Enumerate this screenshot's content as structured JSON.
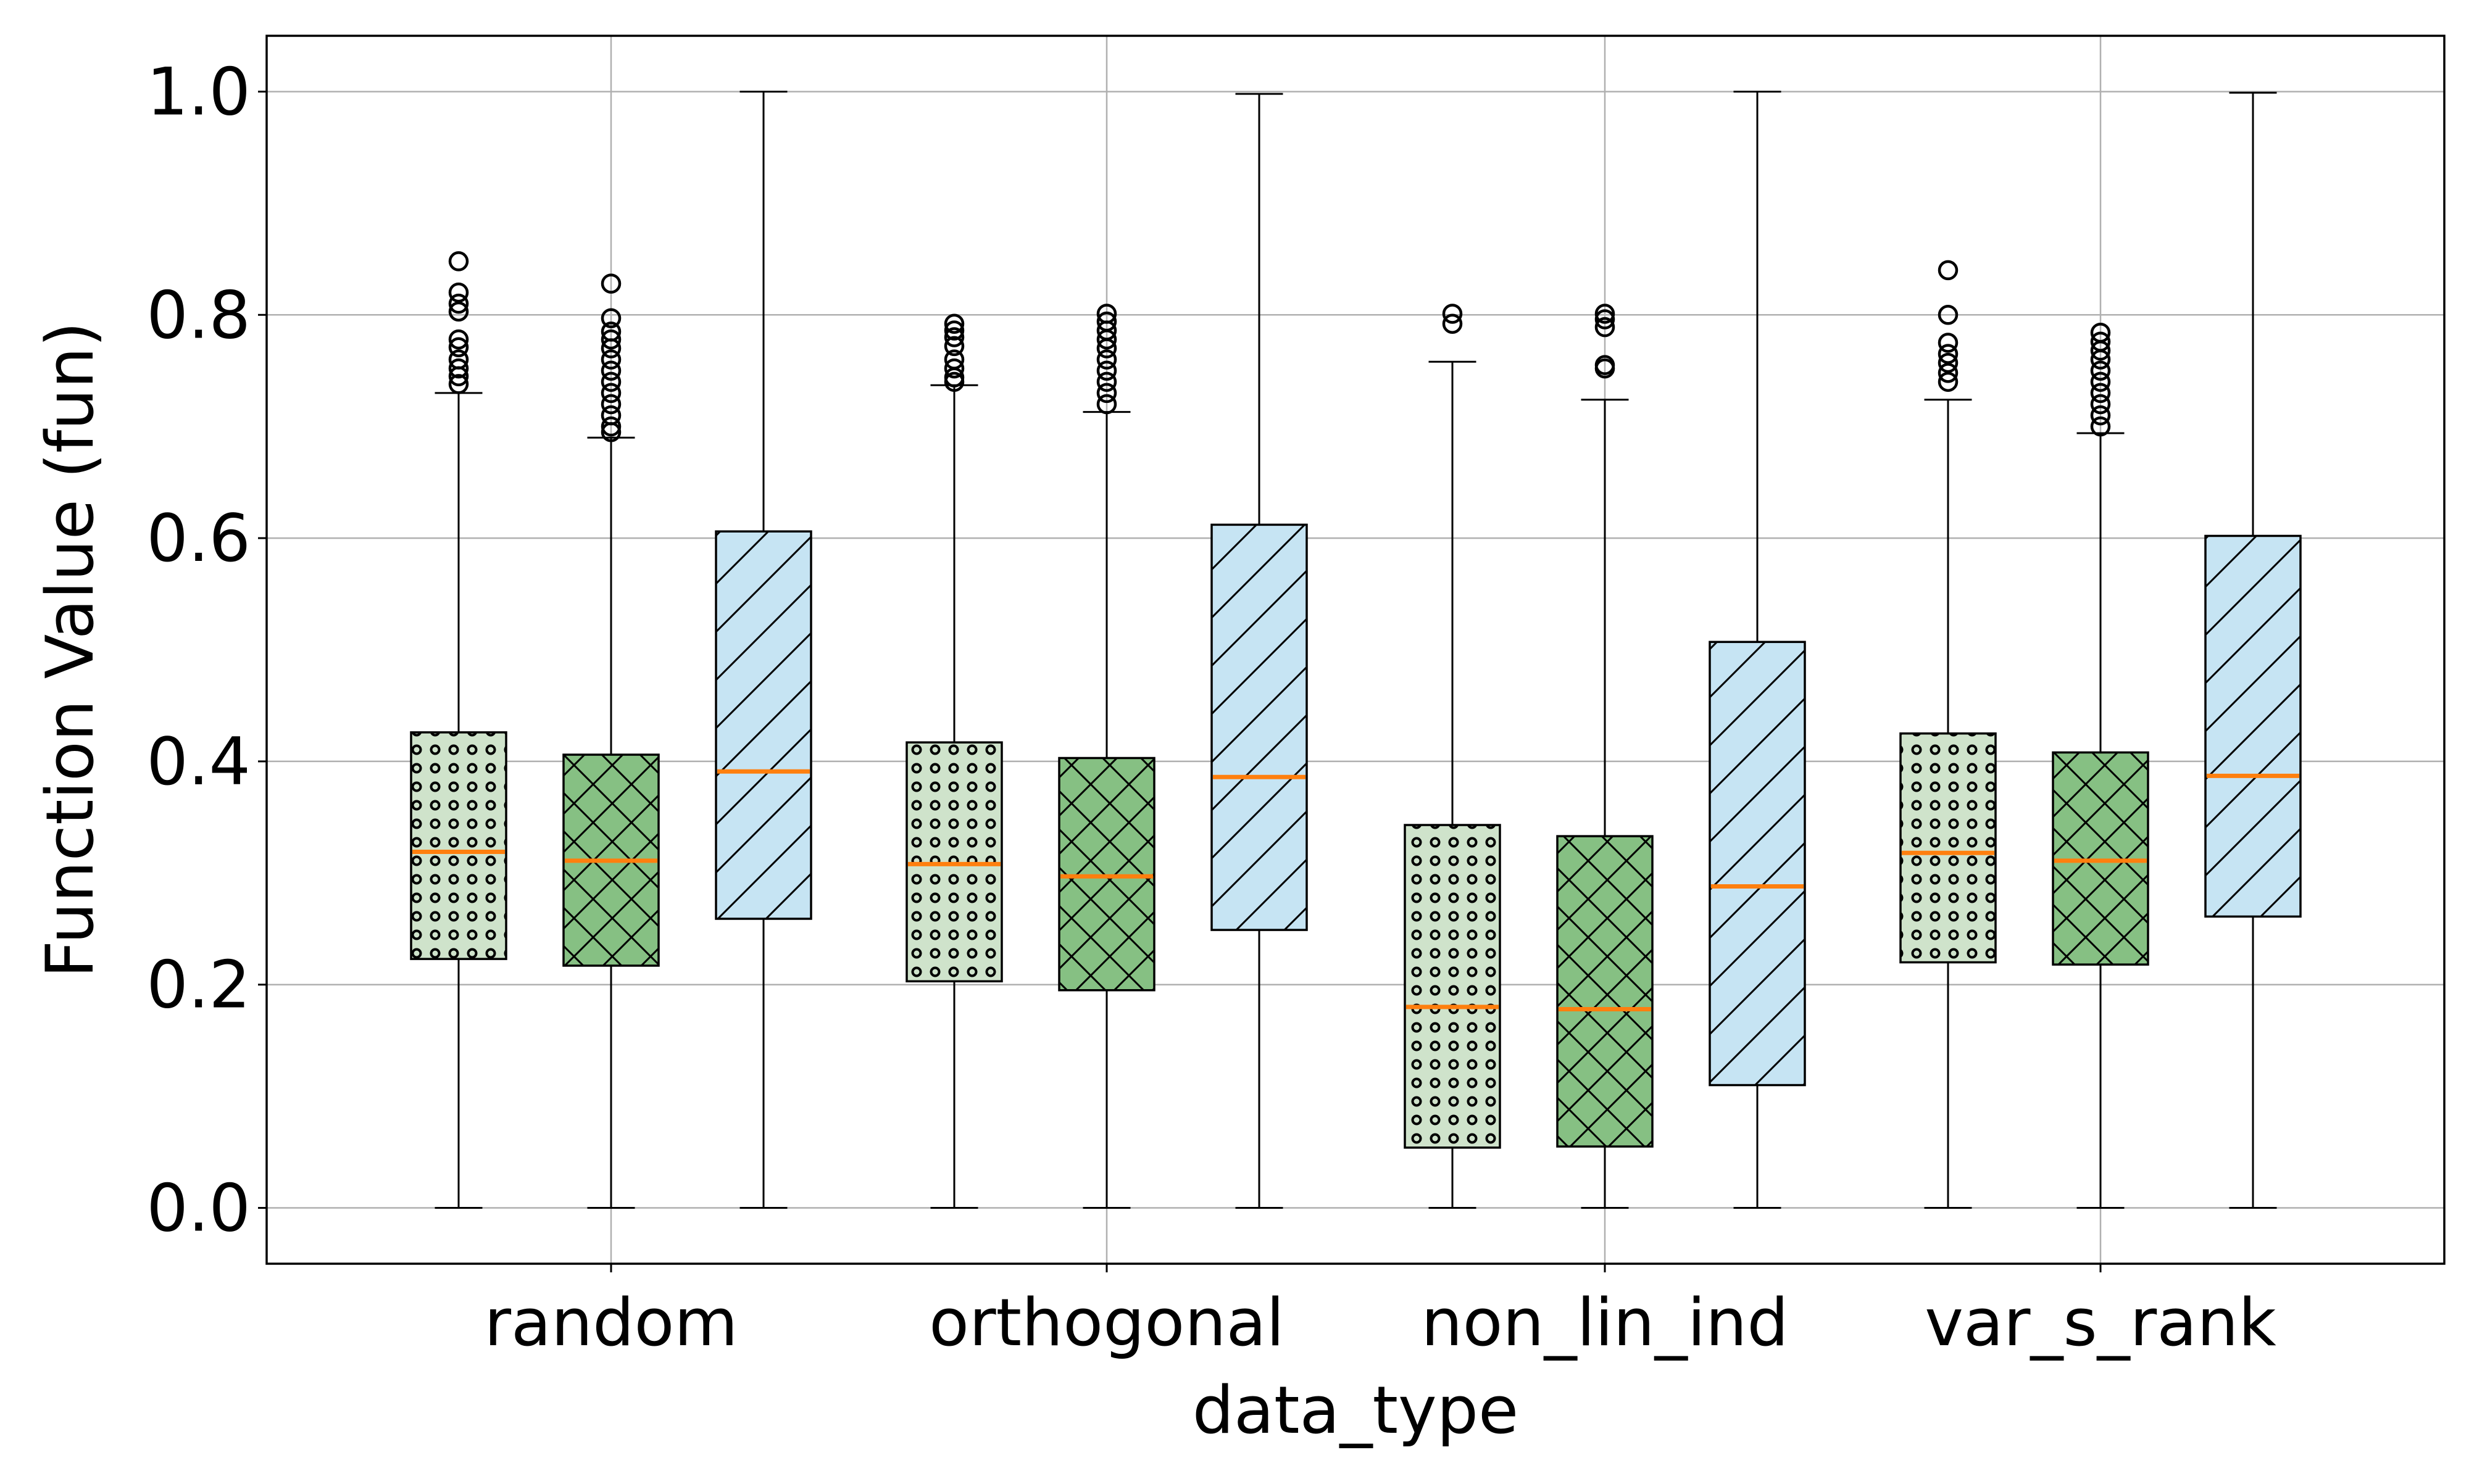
{
  "chart_data": {
    "type": "box",
    "title": "",
    "xlabel": "data_type",
    "ylabel": "Function Value (fun)",
    "ylim": [
      -0.05,
      1.05
    ],
    "yticks": [
      0.0,
      0.2,
      0.4,
      0.6,
      0.8,
      1.0
    ],
    "ytick_labels": [
      "0.0",
      "0.2",
      "0.4",
      "0.6",
      "0.8",
      "1.0"
    ],
    "grid": true,
    "legend": null,
    "categories": [
      "random",
      "orthogonal",
      "non_lin_ind",
      "var_s_rank"
    ],
    "series": [
      {
        "fill_color": "#cfe3cb",
        "hatch": "dots",
        "boxes": [
          {
            "category": "random",
            "whisker_low": 0.0,
            "q1": 0.223,
            "median": 0.319,
            "q3": 0.426,
            "whisker_high": 0.73,
            "outliers": [
              0.848,
              0.82,
              0.81,
              0.803,
              0.778,
              0.771,
              0.76,
              0.752,
              0.745,
              0.738
            ]
          },
          {
            "category": "orthogonal",
            "whisker_low": 0.0,
            "q1": 0.203,
            "median": 0.308,
            "q3": 0.417,
            "whisker_high": 0.737,
            "outliers": [
              0.792,
              0.786,
              0.78,
              0.772,
              0.76,
              0.752,
              0.744,
              0.74
            ]
          },
          {
            "category": "non_lin_ind",
            "whisker_low": 0.0,
            "q1": 0.054,
            "median": 0.18,
            "q3": 0.343,
            "whisker_high": 0.758,
            "outliers": [
              0.801,
              0.792
            ]
          },
          {
            "category": "var_s_rank",
            "whisker_low": 0.0,
            "q1": 0.22,
            "median": 0.318,
            "q3": 0.425,
            "whisker_high": 0.724,
            "outliers": [
              0.84,
              0.8,
              0.775,
              0.765,
              0.757,
              0.748,
              0.74
            ]
          }
        ]
      },
      {
        "fill_color": "#86c083",
        "hatch": "crosshatch",
        "boxes": [
          {
            "category": "random",
            "whisker_low": 0.0,
            "q1": 0.217,
            "median": 0.311,
            "q3": 0.406,
            "whisker_high": 0.69,
            "outliers": [
              0.828,
              0.797,
              0.785,
              0.778,
              0.77,
              0.76,
              0.75,
              0.74,
              0.73,
              0.72,
              0.71,
              0.7,
              0.695
            ]
          },
          {
            "category": "orthogonal",
            "whisker_low": 0.0,
            "q1": 0.195,
            "median": 0.297,
            "q3": 0.403,
            "whisker_high": 0.713,
            "outliers": [
              0.801,
              0.794,
              0.786,
              0.778,
              0.77,
              0.76,
              0.75,
              0.74,
              0.73,
              0.72
            ]
          },
          {
            "category": "non_lin_ind",
            "whisker_low": 0.0,
            "q1": 0.055,
            "median": 0.178,
            "q3": 0.333,
            "whisker_high": 0.724,
            "outliers": [
              0.801,
              0.796,
              0.789,
              0.755,
              0.752
            ]
          },
          {
            "category": "var_s_rank",
            "whisker_low": 0.0,
            "q1": 0.218,
            "median": 0.311,
            "q3": 0.408,
            "whisker_high": 0.694,
            "outliers": [
              0.784,
              0.776,
              0.768,
              0.76,
              0.75,
              0.74,
              0.73,
              0.72,
              0.71,
              0.7
            ]
          }
        ]
      },
      {
        "fill_color": "#c6e4f3",
        "hatch": "diagonal",
        "boxes": [
          {
            "category": "random",
            "whisker_low": 0.0,
            "q1": 0.259,
            "median": 0.391,
            "q3": 0.606,
            "whisker_high": 1.0,
            "outliers": []
          },
          {
            "category": "orthogonal",
            "whisker_low": 0.0,
            "q1": 0.249,
            "median": 0.386,
            "q3": 0.612,
            "whisker_high": 0.998,
            "outliers": []
          },
          {
            "category": "non_lin_ind",
            "whisker_low": 0.0,
            "q1": 0.11,
            "median": 0.288,
            "q3": 0.507,
            "whisker_high": 1.0,
            "outliers": []
          },
          {
            "category": "var_s_rank",
            "whisker_low": 0.0,
            "q1": 0.261,
            "median": 0.387,
            "q3": 0.602,
            "whisker_high": 0.999,
            "outliers": []
          }
        ]
      }
    ],
    "median_color": "#ff7f0e",
    "box_edge_color": "#000000"
  }
}
